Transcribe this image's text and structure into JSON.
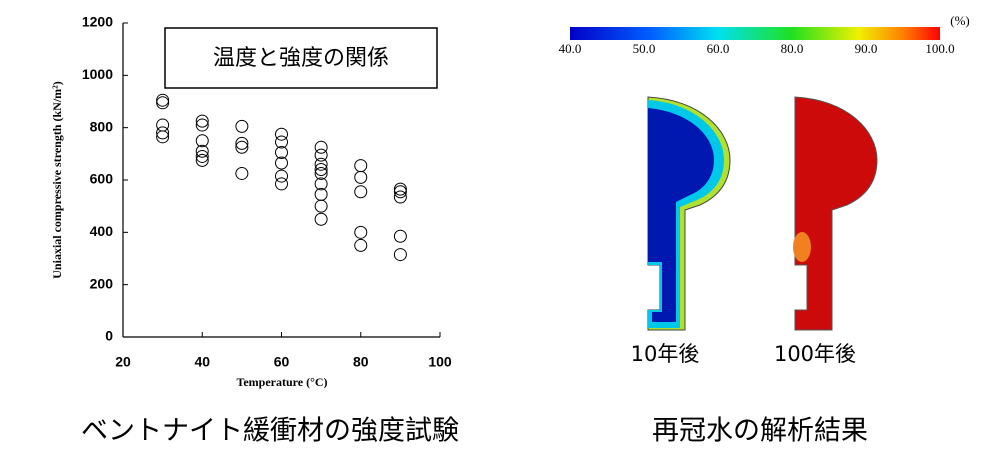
{
  "chart_data": {
    "type": "scatter",
    "annotation": "温度と強度の関係",
    "x_label": "Temperature (°C)",
    "y_label": "Uniaxial compressive strength (kN/m²)",
    "x": [
      30,
      30,
      30,
      30,
      30,
      40,
      40,
      40,
      40,
      40,
      40,
      50,
      50,
      50,
      50,
      60,
      60,
      60,
      60,
      60,
      60,
      70,
      70,
      70,
      70,
      70,
      70,
      70,
      70,
      70,
      80,
      80,
      80,
      80,
      80,
      90,
      90,
      90,
      90,
      90
    ],
    "values": [
      905,
      895,
      810,
      780,
      765,
      825,
      810,
      750,
      710,
      690,
      675,
      805,
      740,
      725,
      625,
      775,
      745,
      705,
      665,
      615,
      585,
      725,
      695,
      660,
      640,
      625,
      585,
      545,
      500,
      450,
      655,
      610,
      555,
      400,
      350,
      565,
      555,
      535,
      385,
      315
    ],
    "color": "#000000",
    "xlim": [
      20,
      100
    ],
    "xticks": [
      20,
      40,
      60,
      80,
      100
    ],
    "ylim": [
      0,
      1200
    ],
    "yticks": [
      0,
      200,
      400,
      600,
      800,
      1000,
      1200
    ],
    "grid": false
  },
  "colorbar": {
    "unit": "(%)",
    "labels": [
      "40.0",
      "50.0",
      "60.0",
      "80.0",
      "90.0",
      "100.0"
    ]
  },
  "figures": {
    "left_label": "10年後",
    "right_label": "100年後"
  },
  "captions": {
    "left": "ベントナイト緩衝材の強度試験",
    "right": "再冠水の解析結果"
  }
}
